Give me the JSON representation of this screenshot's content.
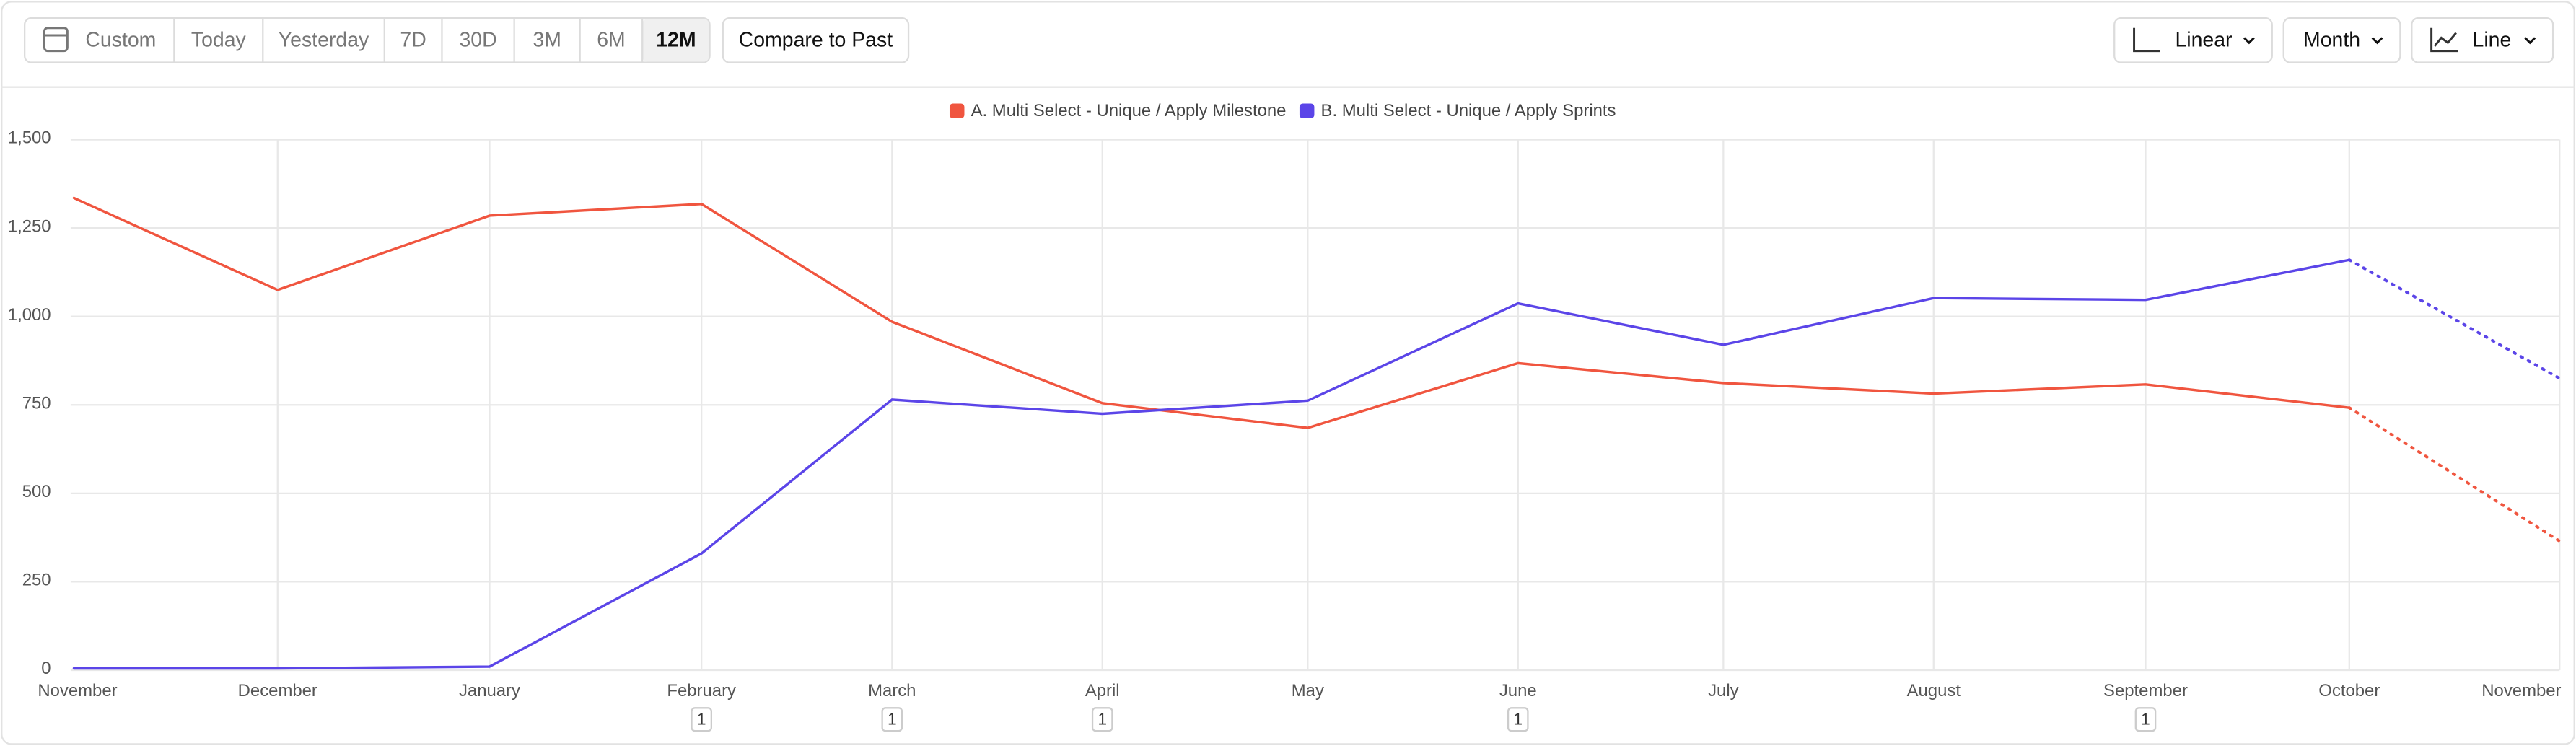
{
  "toolbar": {
    "date_ranges": [
      "Custom",
      "Today",
      "Yesterday",
      "7D",
      "30D",
      "3M",
      "6M",
      "12M"
    ],
    "selected_index": 7,
    "compare_button": "Compare to Past",
    "controls": [
      "Linear",
      "Month",
      "Line"
    ]
  },
  "chart_data": {
    "type": "line",
    "categories": [
      "November",
      "December",
      "January",
      "February",
      "March",
      "April",
      "May",
      "June",
      "July",
      "August",
      "September",
      "October",
      "November"
    ],
    "series": [
      {
        "name": "A. Multi Select - Unique / Apply Milestone",
        "color": "#f0553f",
        "values": [
          1335,
          1075,
          1285,
          1318,
          985,
          755,
          685,
          868,
          812,
          782,
          808,
          742,
          365
        ]
      },
      {
        "name": "B. Multi Select - Unique / Apply Sprints",
        "color": "#5b45e8",
        "values": [
          5,
          5,
          10,
          330,
          765,
          725,
          762,
          1037,
          920,
          1052,
          1047,
          1160,
          825
        ]
      }
    ],
    "incomplete_last_point": true,
    "ylim": [
      0,
      1500
    ],
    "yticks": [
      0,
      250,
      500,
      750,
      {
        "value": 1000,
        "label": "1,000"
      },
      {
        "value": 1250,
        "label": "1,250"
      },
      {
        "value": 1500,
        "label": "1,500"
      }
    ],
    "grid": true,
    "annotations": [
      {
        "x": "February",
        "label": "1"
      },
      {
        "x": "March",
        "label": "1"
      },
      {
        "x": "April",
        "label": "1"
      },
      {
        "x": "June",
        "label": "1"
      },
      {
        "x": "September",
        "label": "1"
      }
    ]
  }
}
